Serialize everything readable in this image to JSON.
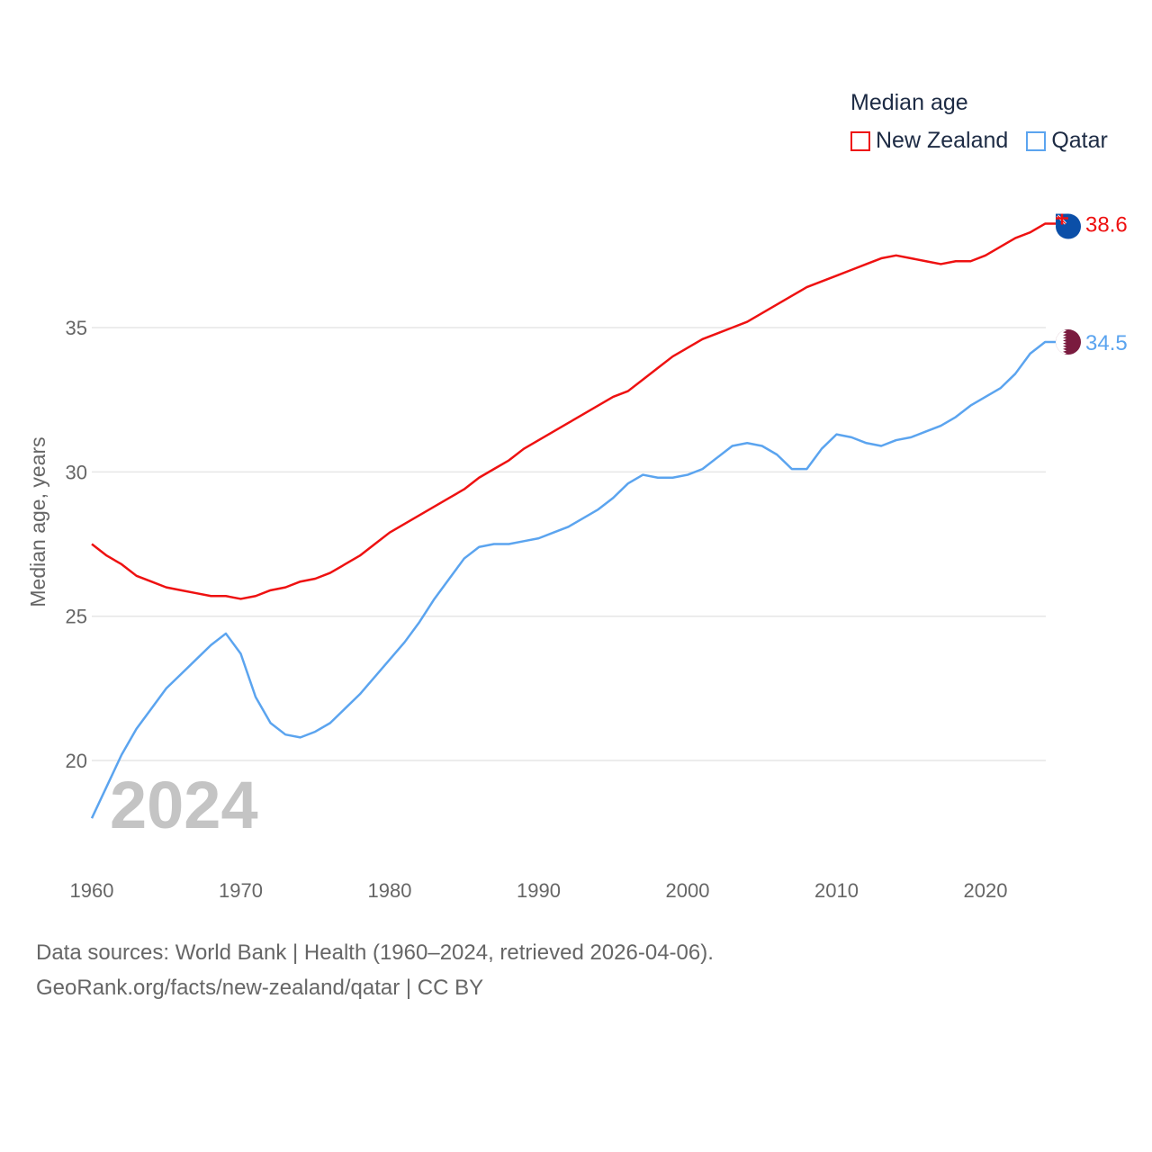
{
  "chart_data": {
    "type": "line",
    "title": "Median age",
    "ylabel": "Median age, years",
    "xlabel": "",
    "ylim": [
      17.8,
      40
    ],
    "xlim": [
      1960,
      2024
    ],
    "yticks": [
      20,
      25,
      30,
      35
    ],
    "xticks": [
      1960,
      1970,
      1980,
      1990,
      2000,
      2010,
      2020
    ],
    "grid": true,
    "legend_placement": "top-right",
    "year_watermark": "2024",
    "x": [
      1960,
      1961,
      1962,
      1963,
      1964,
      1965,
      1966,
      1967,
      1968,
      1969,
      1970,
      1971,
      1972,
      1973,
      1974,
      1975,
      1976,
      1977,
      1978,
      1979,
      1980,
      1981,
      1982,
      1983,
      1984,
      1985,
      1986,
      1987,
      1988,
      1989,
      1990,
      1991,
      1992,
      1993,
      1994,
      1995,
      1996,
      1997,
      1998,
      1999,
      2000,
      2001,
      2002,
      2003,
      2004,
      2005,
      2006,
      2007,
      2008,
      2009,
      2010,
      2011,
      2012,
      2013,
      2014,
      2015,
      2016,
      2017,
      2018,
      2019,
      2020,
      2021,
      2022,
      2023,
      2024
    ],
    "series": [
      {
        "name": "New Zealand",
        "color": "#ee1111",
        "end_label": "38.6",
        "values": [
          27.5,
          27.1,
          26.8,
          26.4,
          26.2,
          26.0,
          25.9,
          25.8,
          25.7,
          25.7,
          25.6,
          25.7,
          25.9,
          26.0,
          26.2,
          26.3,
          26.5,
          26.8,
          27.1,
          27.5,
          27.9,
          28.2,
          28.5,
          28.8,
          29.1,
          29.4,
          29.8,
          30.1,
          30.4,
          30.8,
          31.1,
          31.4,
          31.7,
          32.0,
          32.3,
          32.6,
          32.8,
          33.2,
          33.6,
          34.0,
          34.3,
          34.6,
          34.8,
          35.0,
          35.2,
          35.5,
          35.8,
          36.1,
          36.4,
          36.6,
          36.8,
          37.0,
          37.2,
          37.4,
          37.5,
          37.4,
          37.3,
          37.2,
          37.3,
          37.3,
          37.5,
          37.8,
          38.1,
          38.3,
          38.6
        ]
      },
      {
        "name": "Qatar",
        "color": "#5ba4ef",
        "end_label": "34.5",
        "values": [
          18.0,
          19.1,
          20.2,
          21.1,
          21.8,
          22.5,
          23.0,
          23.5,
          24.0,
          24.4,
          23.7,
          22.2,
          21.3,
          20.9,
          20.8,
          21.0,
          21.3,
          21.8,
          22.3,
          22.9,
          23.5,
          24.1,
          24.8,
          25.6,
          26.3,
          27.0,
          27.4,
          27.5,
          27.5,
          27.6,
          27.7,
          27.9,
          28.1,
          28.4,
          28.7,
          29.1,
          29.6,
          29.9,
          29.8,
          29.8,
          29.9,
          30.1,
          30.5,
          30.9,
          31.0,
          30.9,
          30.6,
          30.1,
          30.1,
          30.8,
          31.3,
          31.2,
          31.0,
          30.9,
          31.1,
          31.2,
          31.4,
          31.6,
          31.9,
          32.3,
          32.6,
          32.9,
          33.4,
          34.1,
          34.5
        ]
      }
    ]
  },
  "footer": {
    "line1": "Data sources: World Bank | Health (1960–2024, retrieved 2026-04-06).",
    "line2": "GeoRank.org/facts/new-zealand/qatar | CC BY"
  }
}
